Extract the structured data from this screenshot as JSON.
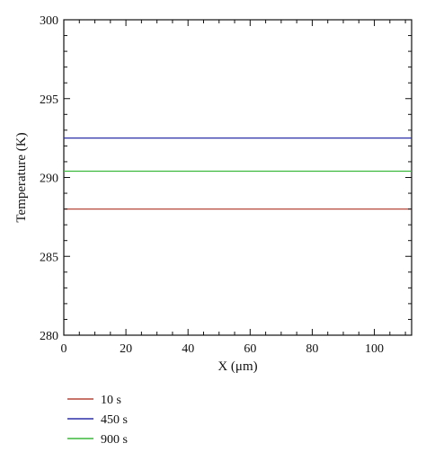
{
  "chart_data": {
    "type": "line",
    "xlabel": "X (μm)",
    "ylabel": "Temperature (K)",
    "xlim": [
      0,
      112
    ],
    "ylim": [
      280,
      300
    ],
    "x_ticks": [
      "0",
      "20",
      "40",
      "60",
      "80",
      "100"
    ],
    "y_ticks": [
      "280",
      "285",
      "290",
      "295",
      "300"
    ],
    "x_tick_values": [
      0,
      20,
      40,
      60,
      80,
      100
    ],
    "y_tick_values": [
      280,
      285,
      290,
      295,
      300
    ],
    "grid": false,
    "legend_placement": "bottom-left, below plot",
    "series": [
      {
        "name": "10 s",
        "color": "#b5473a",
        "x": [
          0,
          112
        ],
        "y": [
          288.0,
          288.0
        ]
      },
      {
        "name": "450 s",
        "color": "#2b2fa8",
        "x": [
          0,
          112
        ],
        "y": [
          292.5,
          292.5
        ]
      },
      {
        "name": "900 s",
        "color": "#3cb83c",
        "x": [
          0,
          112
        ],
        "y": [
          290.4,
          290.4
        ]
      }
    ]
  }
}
